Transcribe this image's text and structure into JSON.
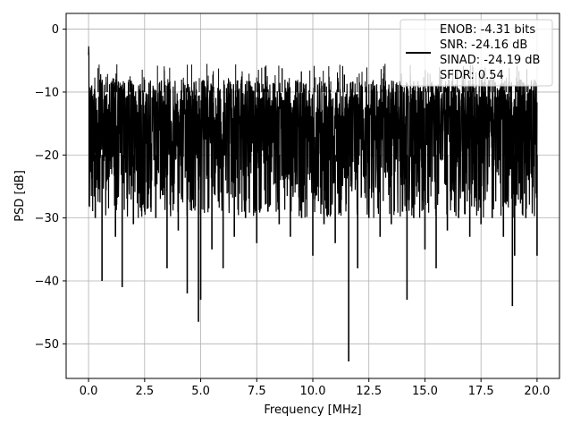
{
  "chart_data": {
    "type": "line",
    "title": "",
    "xlabel": "Frequency [MHz]",
    "ylabel": "PSD [dB]",
    "xlim": [
      -1.0,
      21.0
    ],
    "ylim": [
      -55.5,
      2.5
    ],
    "x_ticks": [
      0.0,
      2.5,
      5.0,
      7.5,
      10.0,
      12.5,
      15.0,
      17.5,
      20.0
    ],
    "x_tick_labels": [
      "0.0",
      "2.5",
      "5.0",
      "7.5",
      "10.0",
      "12.5",
      "15.0",
      "17.5",
      "20.0"
    ],
    "y_ticks": [
      0,
      -10,
      -20,
      -30,
      -40,
      -50
    ],
    "y_tick_labels": [
      "0",
      "−10",
      "−20",
      "−30",
      "−40",
      "−50"
    ],
    "grid": true,
    "legend_position": "top-right",
    "legend_lines": [
      "ENOB: -4.31 bits",
      "SNR: -24.16 dB",
      "SINAD: -24.19 dB",
      "SFDR: 0.54"
    ],
    "series": [
      {
        "color": "#000000",
        "description_note": "dense noise-like PSD trace between about -8 and -28 dB with occasional deep dips",
        "x": [
          0.0,
          0.05,
          0.1,
          0.15,
          0.2,
          0.3,
          0.35,
          0.5,
          0.6,
          0.75,
          1.0,
          1.2,
          1.5,
          2.0,
          2.5,
          3.0,
          3.5,
          4.0,
          4.4,
          4.5,
          4.9,
          5.0,
          5.5,
          6.0,
          6.5,
          7.0,
          7.5,
          8.0,
          8.5,
          9.0,
          9.5,
          10.0,
          10.5,
          11.0,
          11.6,
          12.0,
          12.5,
          13.0,
          13.5,
          14.0,
          14.2,
          14.5,
          15.0,
          15.5,
          16.0,
          16.5,
          17.0,
          17.5,
          18.0,
          18.5,
          18.9,
          19.0,
          19.5,
          20.0
        ],
        "y": [
          -1.5,
          -12,
          -18,
          -24,
          -20,
          -30,
          -25,
          -22,
          -40,
          -28,
          -26,
          -33,
          -41,
          -31,
          -29,
          -30,
          -38,
          -32,
          -42,
          -28,
          -46.5,
          -43,
          -35,
          -38,
          -33,
          -30,
          -34,
          -29,
          -31,
          -33,
          -30,
          -36,
          -31,
          -34,
          -52.8,
          -38,
          -30,
          -33,
          -31,
          -29,
          -43,
          -30,
          -35,
          -38,
          -32,
          -30,
          -33,
          -31,
          -30,
          -33,
          -44,
          -36,
          -30,
          -36
        ]
      }
    ]
  }
}
